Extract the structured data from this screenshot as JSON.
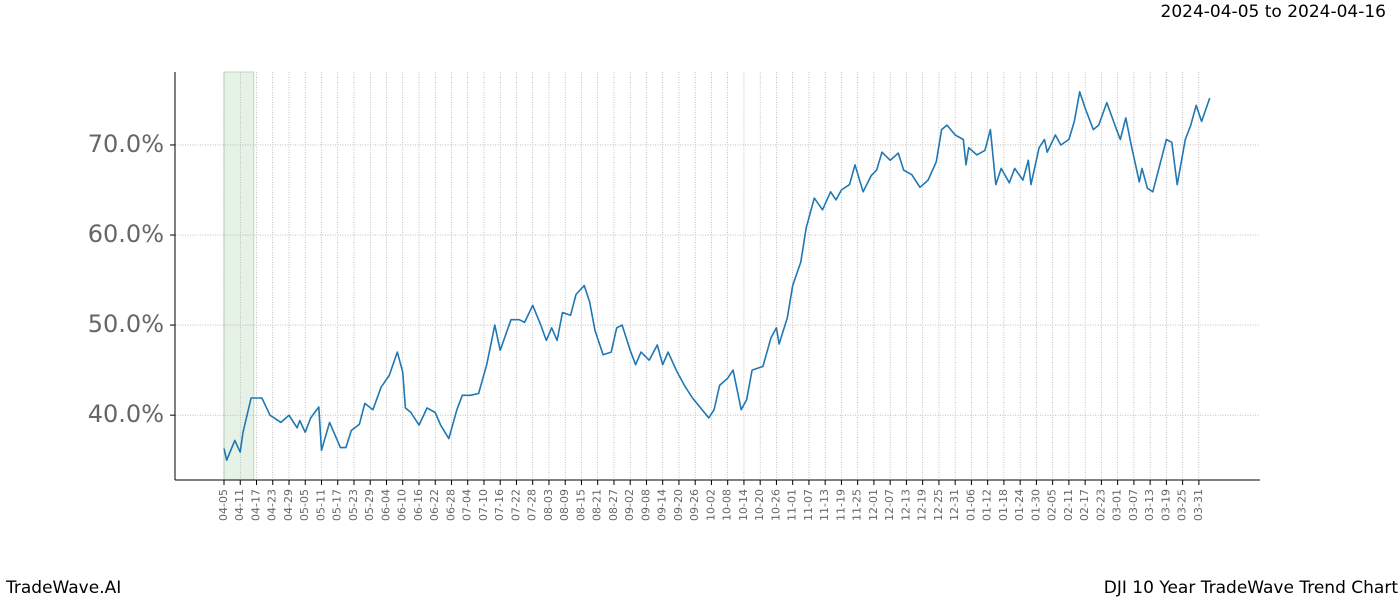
{
  "chart_data": {
    "type": "line",
    "subtitle": "2024-04-05 to 2024-04-16",
    "brand": "TradeWave.AI",
    "title": "DJI 10 Year TradeWave Trend Chart",
    "highlight": [
      "04-05",
      "04-16"
    ],
    "highlight_color": "#e6f2e6",
    "grid": true,
    "x": [
      "04-05",
      "04-06",
      "04-09",
      "04-11",
      "04-12",
      "04-15",
      "04-19",
      "04-22",
      "04-26",
      "04-29",
      "05-02",
      "05-03",
      "05-05",
      "05-07",
      "05-10",
      "05-11",
      "05-14",
      "05-18",
      "05-20",
      "05-22",
      "05-25",
      "05-27",
      "05-30",
      "06-02",
      "06-05",
      "06-08",
      "06-10",
      "06-11",
      "06-13",
      "06-16",
      "06-19",
      "06-22",
      "06-24",
      "06-27",
      "06-30",
      "07-02",
      "07-05",
      "07-08",
      "07-11",
      "07-14",
      "07-16",
      "07-20",
      "07-23",
      "07-25",
      "07-28",
      "07-31",
      "08-02",
      "08-04",
      "08-06",
      "08-08",
      "08-11",
      "08-13",
      "08-16",
      "08-18",
      "08-20",
      "08-23",
      "08-26",
      "08-28",
      "08-30",
      "09-02",
      "09-04",
      "09-06",
      "09-09",
      "09-12",
      "09-14",
      "09-16",
      "09-19",
      "09-22",
      "09-25",
      "09-28",
      "10-01",
      "10-03",
      "10-05",
      "10-08",
      "10-10",
      "10-13",
      "10-15",
      "10-17",
      "10-19",
      "10-21",
      "10-24",
      "10-26",
      "10-27",
      "10-30",
      "11-01",
      "11-04",
      "11-06",
      "11-09",
      "11-12",
      "11-15",
      "11-17",
      "11-19",
      "11-22",
      "11-24",
      "11-27",
      "11-30",
      "12-02",
      "12-04",
      "12-07",
      "12-10",
      "12-12",
      "12-15",
      "12-18",
      "12-21",
      "12-24",
      "12-26",
      "12-28",
      "12-31",
      "01-03",
      "01-04",
      "01-05",
      "01-08",
      "01-11",
      "01-13",
      "01-15",
      "01-17",
      "01-20",
      "01-22",
      "01-25",
      "01-27",
      "01-28",
      "01-31",
      "02-02",
      "02-03",
      "02-06",
      "02-08",
      "02-11",
      "02-13",
      "02-15",
      "02-17",
      "02-20",
      "02-22",
      "02-25",
      "02-28",
      "03-02",
      "03-04",
      "03-06",
      "03-09",
      "03-10",
      "03-12",
      "03-14",
      "03-17",
      "03-19",
      "03-21",
      "03-23",
      "03-26",
      "03-28",
      "03-30",
      "04-01",
      "04-04"
    ],
    "series": [
      {
        "name": "DJI",
        "color": "#1f77b4",
        "values": [
          36.3,
          35.0,
          37.2,
          35.9,
          38.1,
          41.9,
          41.9,
          40.0,
          39.2,
          40.0,
          38.6,
          39.4,
          38.1,
          39.7,
          40.9,
          36.1,
          39.2,
          36.4,
          36.4,
          38.3,
          39.0,
          41.3,
          40.6,
          43.1,
          44.4,
          47.0,
          44.8,
          40.8,
          40.3,
          38.9,
          40.8,
          40.3,
          38.9,
          37.4,
          40.6,
          42.2,
          42.2,
          42.4,
          45.6,
          50.0,
          47.2,
          50.6,
          50.6,
          50.3,
          52.2,
          50.0,
          48.3,
          49.7,
          48.3,
          51.4,
          51.1,
          53.4,
          54.4,
          52.6,
          49.4,
          46.7,
          47.0,
          49.7,
          50.0,
          47.2,
          45.6,
          47.0,
          46.1,
          47.8,
          45.6,
          47.0,
          45.0,
          43.3,
          41.9,
          40.8,
          39.7,
          40.6,
          43.3,
          44.1,
          45.0,
          40.6,
          41.7,
          45.0,
          45.2,
          45.4,
          48.6,
          49.7,
          47.9,
          50.8,
          54.4,
          57.0,
          60.8,
          64.1,
          62.8,
          64.8,
          63.9,
          65.0,
          65.6,
          67.8,
          64.8,
          66.6,
          67.2,
          69.2,
          68.3,
          69.1,
          67.2,
          66.7,
          65.3,
          66.1,
          68.1,
          71.7,
          72.2,
          71.1,
          70.6,
          67.8,
          69.7,
          68.9,
          69.4,
          71.7,
          65.6,
          67.4,
          65.8,
          67.4,
          66.1,
          68.3,
          65.6,
          69.7,
          70.6,
          69.2,
          71.1,
          70.0,
          70.6,
          72.6,
          75.9,
          74.1,
          71.7,
          72.2,
          74.7,
          72.2,
          70.6,
          73.0,
          70.0,
          65.9,
          67.4,
          65.2,
          64.8,
          68.3,
          70.6,
          70.3,
          65.6,
          70.6,
          72.2,
          74.4,
          72.6,
          75.2
        ]
      }
    ],
    "ylim": [
      32.8,
      78.1
    ],
    "yticks": [
      {
        "value": 40,
        "label": "40.0%"
      },
      {
        "value": 50,
        "label": "50.0%"
      },
      {
        "value": 60,
        "label": "60.0%"
      },
      {
        "value": 70,
        "label": "70.0%"
      }
    ],
    "xticks": [
      "04-05",
      "04-11",
      "04-17",
      "04-23",
      "04-29",
      "05-05",
      "05-11",
      "05-17",
      "05-23",
      "05-29",
      "06-04",
      "06-10",
      "06-16",
      "06-22",
      "06-28",
      "07-04",
      "07-10",
      "07-16",
      "07-22",
      "07-28",
      "08-03",
      "08-09",
      "08-15",
      "08-21",
      "08-27",
      "09-02",
      "09-08",
      "09-14",
      "09-20",
      "09-26",
      "10-02",
      "10-08",
      "10-14",
      "10-20",
      "10-26",
      "11-01",
      "11-07",
      "11-13",
      "11-19",
      "11-25",
      "12-01",
      "12-07",
      "12-13",
      "12-19",
      "12-25",
      "12-31",
      "01-06",
      "01-12",
      "01-18",
      "01-24",
      "01-30",
      "02-05",
      "02-11",
      "02-17",
      "02-23",
      "03-01",
      "03-07",
      "03-13",
      "03-19",
      "03-25",
      "03-31"
    ]
  }
}
